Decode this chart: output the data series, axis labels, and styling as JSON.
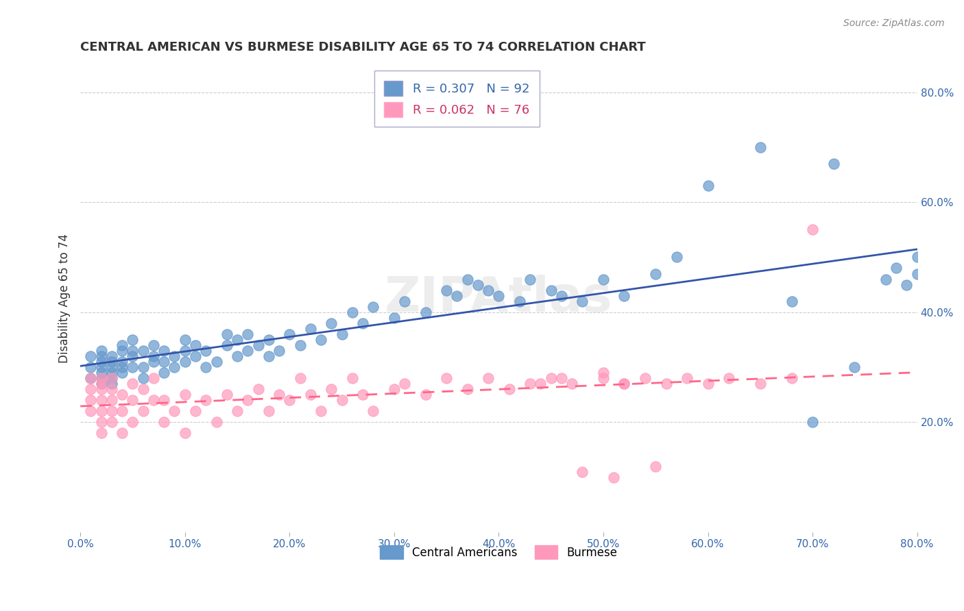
{
  "title": "CENTRAL AMERICAN VS BURMESE DISABILITY AGE 65 TO 74 CORRELATION CHART",
  "source_text": "Source: ZipAtlas.com",
  "ylabel": "Disability Age 65 to 74",
  "ylabel_right_ticks": [
    "80.0%",
    "60.0%",
    "40.0%",
    "20.0%"
  ],
  "ylabel_right_vals": [
    0.8,
    0.6,
    0.4,
    0.2
  ],
  "legend_entry1": "R = 0.307   N = 92",
  "legend_entry2": "R = 0.062   N = 76",
  "legend_label1": "Central Americans",
  "legend_label2": "Burmese",
  "blue_color": "#6699CC",
  "pink_color": "#FF99BB",
  "blue_line_color": "#3355AA",
  "pink_line_color": "#FF6688",
  "watermark": "ZIPAtlas",
  "xmin": 0.0,
  "xmax": 0.8,
  "ymin": 0.0,
  "ymax": 0.85,
  "blue_scatter_x": [
    0.01,
    0.01,
    0.01,
    0.02,
    0.02,
    0.02,
    0.02,
    0.02,
    0.02,
    0.02,
    0.03,
    0.03,
    0.03,
    0.03,
    0.03,
    0.03,
    0.04,
    0.04,
    0.04,
    0.04,
    0.04,
    0.05,
    0.05,
    0.05,
    0.05,
    0.06,
    0.06,
    0.06,
    0.07,
    0.07,
    0.07,
    0.08,
    0.08,
    0.08,
    0.09,
    0.09,
    0.1,
    0.1,
    0.1,
    0.11,
    0.11,
    0.12,
    0.12,
    0.13,
    0.14,
    0.14,
    0.15,
    0.15,
    0.16,
    0.16,
    0.17,
    0.18,
    0.18,
    0.19,
    0.2,
    0.21,
    0.22,
    0.23,
    0.24,
    0.25,
    0.26,
    0.27,
    0.28,
    0.3,
    0.31,
    0.33,
    0.35,
    0.36,
    0.37,
    0.38,
    0.39,
    0.4,
    0.42,
    0.43,
    0.45,
    0.46,
    0.48,
    0.5,
    0.52,
    0.55,
    0.57,
    0.6,
    0.65,
    0.68,
    0.7,
    0.72,
    0.74,
    0.77,
    0.78,
    0.79,
    0.8,
    0.8
  ],
  "blue_scatter_y": [
    0.28,
    0.3,
    0.32,
    0.27,
    0.28,
    0.3,
    0.31,
    0.29,
    0.32,
    0.33,
    0.28,
    0.29,
    0.3,
    0.31,
    0.32,
    0.27,
    0.29,
    0.3,
    0.31,
    0.33,
    0.34,
    0.3,
    0.32,
    0.33,
    0.35,
    0.28,
    0.3,
    0.33,
    0.31,
    0.32,
    0.34,
    0.29,
    0.31,
    0.33,
    0.3,
    0.32,
    0.31,
    0.33,
    0.35,
    0.32,
    0.34,
    0.3,
    0.33,
    0.31,
    0.34,
    0.36,
    0.32,
    0.35,
    0.33,
    0.36,
    0.34,
    0.32,
    0.35,
    0.33,
    0.36,
    0.34,
    0.37,
    0.35,
    0.38,
    0.36,
    0.4,
    0.38,
    0.41,
    0.39,
    0.42,
    0.4,
    0.44,
    0.43,
    0.46,
    0.45,
    0.44,
    0.43,
    0.42,
    0.46,
    0.44,
    0.43,
    0.42,
    0.46,
    0.43,
    0.47,
    0.5,
    0.63,
    0.7,
    0.42,
    0.2,
    0.67,
    0.3,
    0.46,
    0.48,
    0.45,
    0.47,
    0.5
  ],
  "pink_scatter_x": [
    0.01,
    0.01,
    0.01,
    0.01,
    0.02,
    0.02,
    0.02,
    0.02,
    0.02,
    0.02,
    0.02,
    0.03,
    0.03,
    0.03,
    0.03,
    0.03,
    0.04,
    0.04,
    0.04,
    0.05,
    0.05,
    0.05,
    0.06,
    0.06,
    0.07,
    0.07,
    0.08,
    0.08,
    0.09,
    0.1,
    0.1,
    0.11,
    0.12,
    0.13,
    0.14,
    0.15,
    0.16,
    0.17,
    0.18,
    0.19,
    0.2,
    0.21,
    0.22,
    0.23,
    0.24,
    0.25,
    0.26,
    0.27,
    0.28,
    0.3,
    0.31,
    0.33,
    0.35,
    0.37,
    0.39,
    0.41,
    0.43,
    0.45,
    0.47,
    0.5,
    0.52,
    0.54,
    0.56,
    0.58,
    0.6,
    0.62,
    0.65,
    0.68,
    0.7,
    0.52,
    0.55,
    0.44,
    0.46,
    0.48,
    0.5,
    0.51
  ],
  "pink_scatter_y": [
    0.22,
    0.24,
    0.26,
    0.28,
    0.18,
    0.2,
    0.22,
    0.24,
    0.26,
    0.27,
    0.28,
    0.2,
    0.22,
    0.24,
    0.26,
    0.28,
    0.18,
    0.22,
    0.25,
    0.2,
    0.24,
    0.27,
    0.22,
    0.26,
    0.24,
    0.28,
    0.2,
    0.24,
    0.22,
    0.18,
    0.25,
    0.22,
    0.24,
    0.2,
    0.25,
    0.22,
    0.24,
    0.26,
    0.22,
    0.25,
    0.24,
    0.28,
    0.25,
    0.22,
    0.26,
    0.24,
    0.28,
    0.25,
    0.22,
    0.26,
    0.27,
    0.25,
    0.28,
    0.26,
    0.28,
    0.26,
    0.27,
    0.28,
    0.27,
    0.28,
    0.27,
    0.28,
    0.27,
    0.28,
    0.27,
    0.28,
    0.27,
    0.28,
    0.55,
    0.27,
    0.12,
    0.27,
    0.28,
    0.11,
    0.29,
    0.1
  ]
}
